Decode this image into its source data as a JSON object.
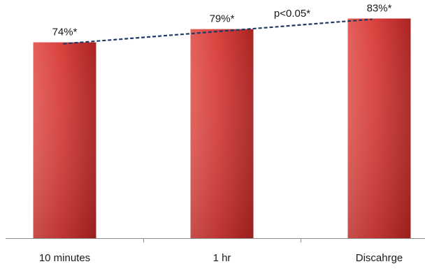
{
  "chart_data": {
    "type": "bar",
    "categories": [
      "10 minutes",
      "1 hr",
      "Discahrge"
    ],
    "values": [
      74,
      79,
      83
    ],
    "data_labels": [
      "74%*",
      "79%*",
      "83%*"
    ],
    "title": "",
    "xlabel": "",
    "ylabel": "",
    "ylim": [
      0,
      90
    ],
    "grid": false,
    "legend": "none",
    "trendline": {
      "style": "dashed",
      "color": "#1f3864",
      "annotation": "p<0.05*"
    },
    "colors": {
      "bar": "#d9403d",
      "bar_dark": "#a82421",
      "bar_light": "#e4605a",
      "axis": "#8c8c8c"
    }
  }
}
